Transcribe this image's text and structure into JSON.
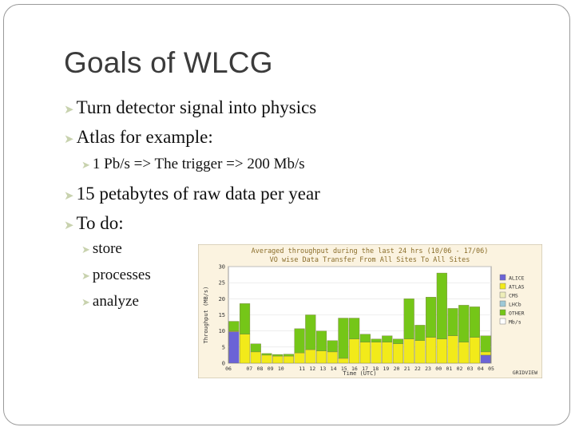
{
  "slide": {
    "title": "Goals of WLCG",
    "bullets": [
      {
        "level": 1,
        "text": "Turn detector signal into physics"
      },
      {
        "level": 1,
        "text": "Atlas for example:"
      },
      {
        "level": 2,
        "text": "1 Pb/s => The trigger => 200 Mb/s"
      },
      {
        "level": 1,
        "text": "15 petabytes of raw data per year"
      },
      {
        "level": 1,
        "text": "To do:"
      },
      {
        "level": 2,
        "text": "store"
      },
      {
        "level": 2,
        "text": "processes"
      },
      {
        "level": 2,
        "text": "analyze"
      }
    ],
    "bullet_icon": "arrow-bullet-icon",
    "bullet_color": "#c8d2ae"
  },
  "chart_data": {
    "type": "bar",
    "title": "Averaged throughput during the last 24 hrs (10/06 - 17/06)",
    "subtitle": "VO wise Data Transfer From All Sites To All Sites",
    "ylabel": "Throughput (MB/s)",
    "xlabel": "Time (UTC)",
    "ylim": [
      0,
      30
    ],
    "yticks": [
      "0",
      "5",
      "10",
      "15",
      "20",
      "25",
      "30"
    ],
    "categories": [
      "06",
      "07",
      "08",
      "09",
      "10",
      "11",
      "12",
      "13",
      "14",
      "15",
      "16",
      "17",
      "18",
      "19",
      "20",
      "21",
      "22",
      "23",
      "00",
      "01",
      "02",
      "03",
      "04",
      "05"
    ],
    "xtick_labels": [
      "06",
      "",
      "07",
      "08",
      "09",
      "10",
      "",
      "11",
      "12",
      "13",
      "14",
      "15",
      "16",
      "17",
      "18",
      "19",
      "20",
      "21",
      "22",
      "23",
      "00",
      "01",
      "02",
      "03",
      "04",
      "05"
    ],
    "series": [
      {
        "name": "ALICE",
        "color": "#6b63d6",
        "values": [
          9.8,
          0,
          0,
          0,
          0,
          0,
          0,
          0,
          0,
          0,
          0,
          0,
          0,
          0,
          0,
          0,
          0,
          0,
          0,
          0,
          0,
          0,
          0,
          2.5
        ]
      },
      {
        "name": "ATLAS",
        "color": "#f2ea1a",
        "values": [
          0.2,
          9,
          3.5,
          2.5,
          2.2,
          2.2,
          3.2,
          4.2,
          3.8,
          3.5,
          1.5,
          7.5,
          6.5,
          6.5,
          6.5,
          6,
          7.5,
          7,
          8,
          7.5,
          8.5,
          6.5,
          8,
          1
        ]
      },
      {
        "name": "CMS",
        "color": "#eeeeb8",
        "values": [
          0,
          0,
          0,
          0,
          0,
          0,
          0,
          0,
          0,
          0,
          0,
          0,
          0,
          0,
          0,
          0,
          0,
          0,
          0,
          0,
          0,
          0,
          0,
          0
        ]
      },
      {
        "name": "LHCb",
        "color": "#9ec8d6",
        "values": [
          0,
          0,
          0,
          0,
          0,
          0,
          0,
          0,
          0,
          0,
          0,
          0,
          0,
          0,
          0,
          0,
          0,
          0,
          0,
          0,
          0,
          0,
          0,
          0
        ]
      },
      {
        "name": "OTHER",
        "color": "#75c618",
        "values": [
          3,
          9.5,
          2.5,
          0.5,
          0.5,
          0.6,
          7.5,
          10.8,
          6.2,
          3.5,
          12.5,
          6.5,
          2.5,
          1,
          2,
          1.5,
          12.5,
          4.8,
          12.5,
          20.5,
          8.5,
          11.5,
          9.5,
          5
        ]
      },
      {
        "name": "Mb/s",
        "color": "#ffffff",
        "values": [
          0,
          0,
          0,
          0,
          0,
          0,
          0,
          0,
          0,
          0,
          0,
          0,
          0,
          0,
          0,
          0,
          0,
          0,
          0,
          0,
          0,
          0,
          0,
          0
        ]
      }
    ],
    "legend_position": "right",
    "grid": true,
    "credit": "GRIDVIEW"
  }
}
